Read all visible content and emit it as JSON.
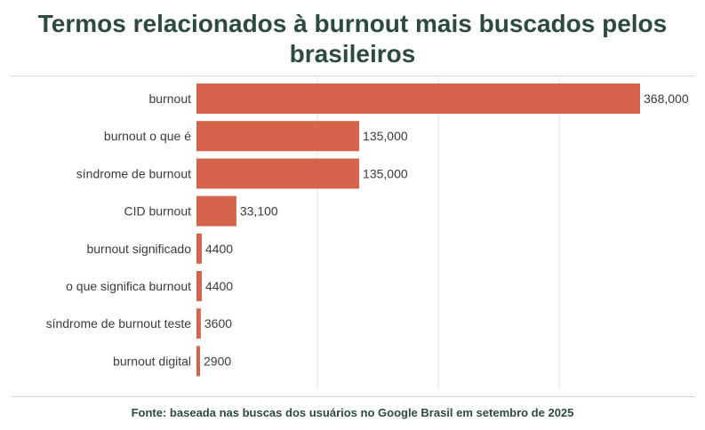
{
  "title": "Termos relacionados à burnout mais buscados pelos brasileiros",
  "source": "Fonte: baseada nas buscas dos usuários no Google Brasil em setembro de 2025",
  "colors": {
    "bar": "#d4644a",
    "grid": "#e2e2e2",
    "title": "#2d4a40"
  },
  "chart_data": {
    "type": "bar",
    "orientation": "horizontal",
    "title": "Termos relacionados à burnout mais buscados pelos brasileiros",
    "categories": [
      "burnout",
      "burnout o que é",
      "síndrome de burnout",
      "CID burnout",
      "burnout significado",
      "o que significa burnout",
      "síndrome de burnout teste",
      "burnout digital"
    ],
    "values": [
      368000,
      135000,
      135000,
      33100,
      4400,
      4400,
      3600,
      2900
    ],
    "value_labels": [
      "368,000",
      "135,000",
      "135,000",
      "33,100",
      "4400",
      "4400",
      "3600",
      "2900"
    ],
    "xlim": [
      0,
      368000
    ],
    "grid": true
  }
}
